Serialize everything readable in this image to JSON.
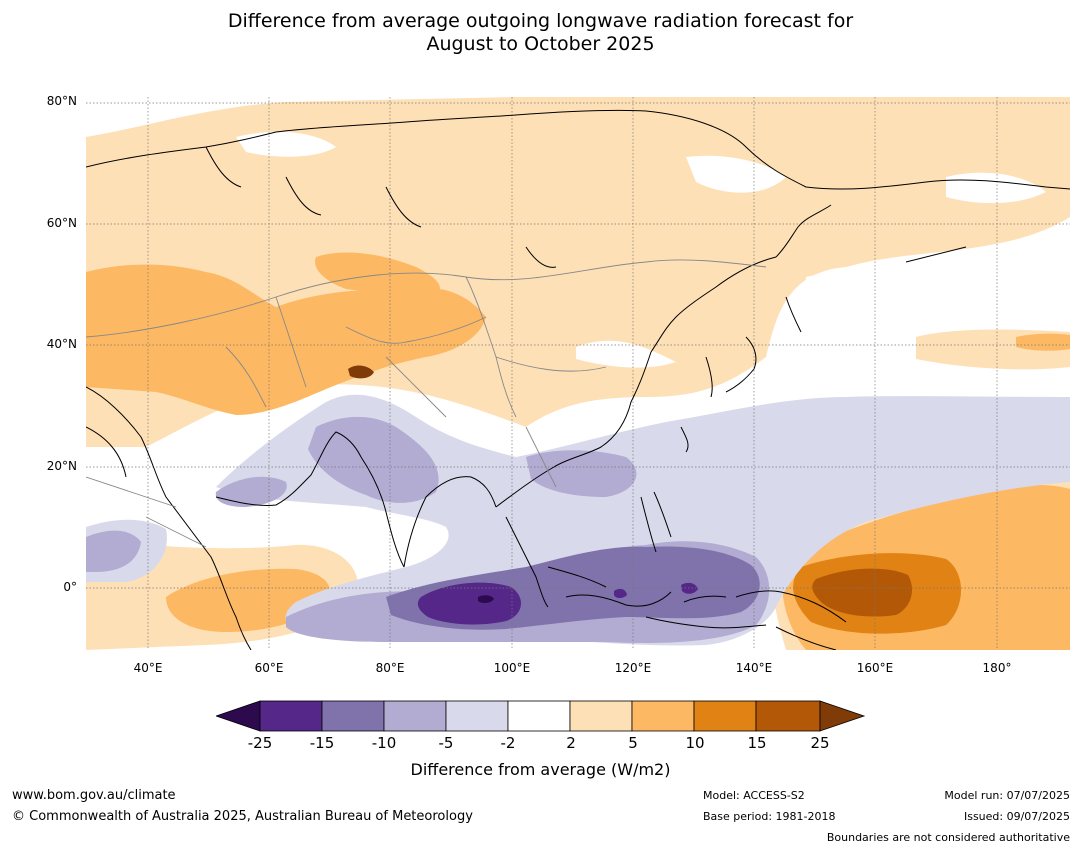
{
  "title": {
    "line1": "Difference from average outgoing longwave radiation forecast for",
    "line2": "August to October 2025"
  },
  "axes": {
    "lat_labels": [
      "80°N",
      "60°N",
      "40°N",
      "20°N",
      "0°"
    ],
    "lon_labels": [
      "40°E",
      "60°E",
      "80°E",
      "100°E",
      "120°E",
      "140°E",
      "160°E",
      "180°"
    ]
  },
  "colorbar": {
    "ticks": [
      "-25",
      "-15",
      "-10",
      "-5",
      "-2",
      "2",
      "5",
      "10",
      "15",
      "25"
    ],
    "colors": [
      "#2d0a4e",
      "#542788",
      "#8073ac",
      "#b2abd2",
      "#d8daeb",
      "#ffffff",
      "#fee0b6",
      "#fdb863",
      "#e08214",
      "#b35806",
      "#7f3b08"
    ],
    "label": "Difference from average (W/m2)"
  },
  "footer": {
    "url": "www.bom.gov.au/climate",
    "copyright": "© Commonwealth of Australia 2025, Australian Bureau of Meteorology",
    "model": "Model: ACCESS-S2",
    "base_period": "Base period: 1981-2018",
    "model_run": "Model run: 07/07/2025",
    "issued": "Issued: 09/07/2025",
    "boundaries_note": "Boundaries are not considered authoritative"
  }
}
